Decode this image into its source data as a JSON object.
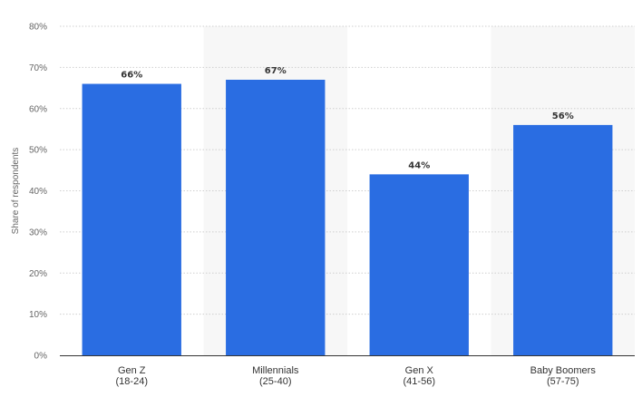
{
  "chart_data": {
    "type": "bar",
    "categories": [
      {
        "name": "Gen Z",
        "range": "(18-24)"
      },
      {
        "name": "Millennials",
        "range": "(25-40)"
      },
      {
        "name": "Gen X",
        "range": "(41-56)"
      },
      {
        "name": "Baby Boomers",
        "range": "(57-75)"
      }
    ],
    "values": [
      66,
      67,
      44,
      56
    ],
    "value_labels": [
      "66%",
      "67%",
      "44%",
      "56%"
    ],
    "ylabel": "Share of respondents",
    "ylim": [
      0,
      80
    ],
    "yticks": [
      0,
      10,
      20,
      30,
      40,
      50,
      60,
      70,
      80
    ],
    "ytick_labels": [
      "0%",
      "10%",
      "20%",
      "30%",
      "40%",
      "50%",
      "60%",
      "70%",
      "80%"
    ],
    "grid": true,
    "bar_color": "#2a6de2",
    "band_color": "#f7f7f7"
  }
}
